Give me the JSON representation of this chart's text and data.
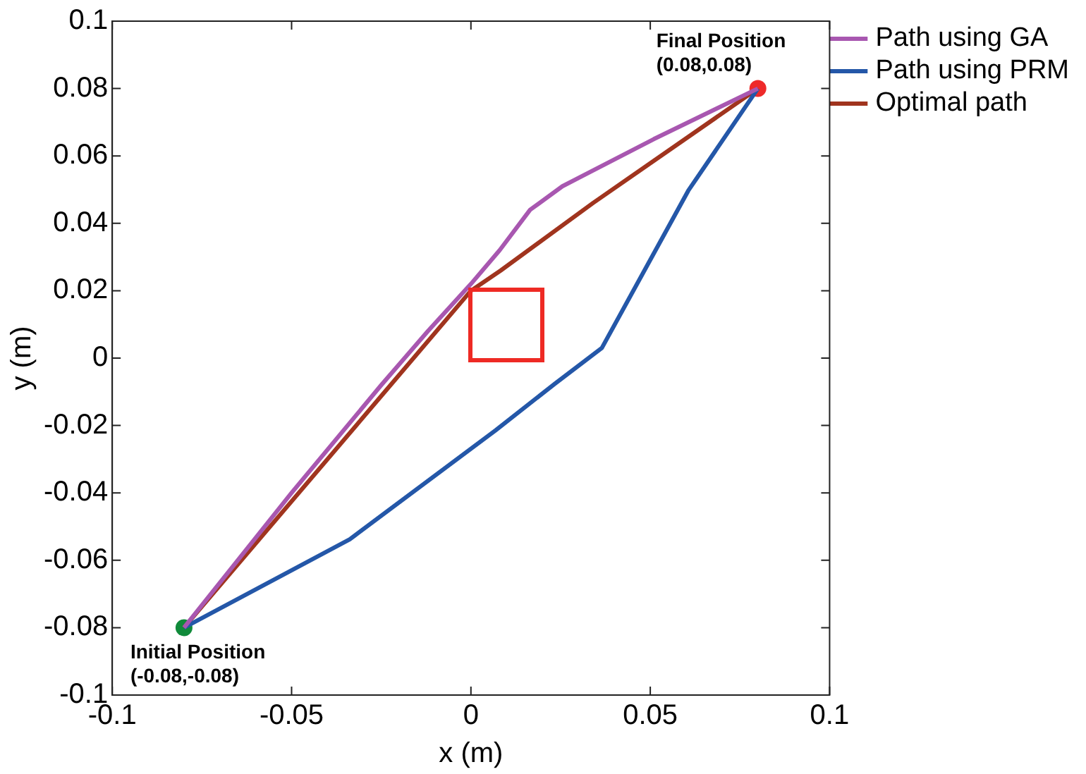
{
  "chart_data": {
    "type": "line",
    "xlabel": "x (m)",
    "ylabel": "y (m)",
    "xlim": [
      -0.1,
      0.1
    ],
    "ylim": [
      -0.1,
      0.1
    ],
    "xticks": [
      -0.1,
      -0.05,
      0,
      0.05,
      0.1
    ],
    "yticks": [
      -0.1,
      -0.08,
      -0.06,
      -0.04,
      -0.02,
      0,
      0.02,
      0.04,
      0.06,
      0.08,
      0.1
    ],
    "grid": false,
    "legend": "top right",
    "marker": "none",
    "line_style": "solid",
    "series": [
      {
        "name": "Path using GA",
        "color": "#a857b0",
        "x": [
          -0.08,
          -0.05,
          -0.025,
          -0.012,
          0,
          0.008,
          0.0165,
          0.0255,
          0.051,
          0.08
        ],
        "values": [
          -0.08,
          -0.04,
          -0.008,
          0.008,
          0.022,
          0.032,
          0.044,
          0.051,
          0.065,
          0.08
        ]
      },
      {
        "name": "Path using PRM",
        "color": "#2457a8",
        "x": [
          -0.08,
          -0.0338,
          0.0069,
          0.0234,
          0.0365,
          0.0606,
          0.08
        ],
        "values": [
          -0.08,
          -0.0538,
          -0.0214,
          -0.0076,
          0.003,
          0.0497,
          0.08
        ]
      },
      {
        "name": "Optimal path",
        "color": "#a0341e",
        "x": [
          -0.08,
          -0.024,
          0,
          0.0083,
          0.034,
          0.08
        ],
        "values": [
          -0.08,
          -0.01,
          0.02,
          0.026,
          0.046,
          0.08
        ]
      },
      {
        "type": "scatter",
        "marker": "circle",
        "color": "#108a3a",
        "x": [
          -0.08
        ],
        "values": [
          -0.08
        ]
      },
      {
        "type": "scatter",
        "marker": "circle",
        "color": "#ee2a2a",
        "x": [
          0.08
        ],
        "values": [
          0.08
        ]
      }
    ],
    "annotations": [
      {
        "text": "Initial Position\n(-0.08,-0.08)",
        "x": -0.08,
        "y": -0.08
      },
      {
        "text": "Final Position\n(0.08,0.08)",
        "x": 0.08,
        "y": 0.08
      }
    ]
  }
}
